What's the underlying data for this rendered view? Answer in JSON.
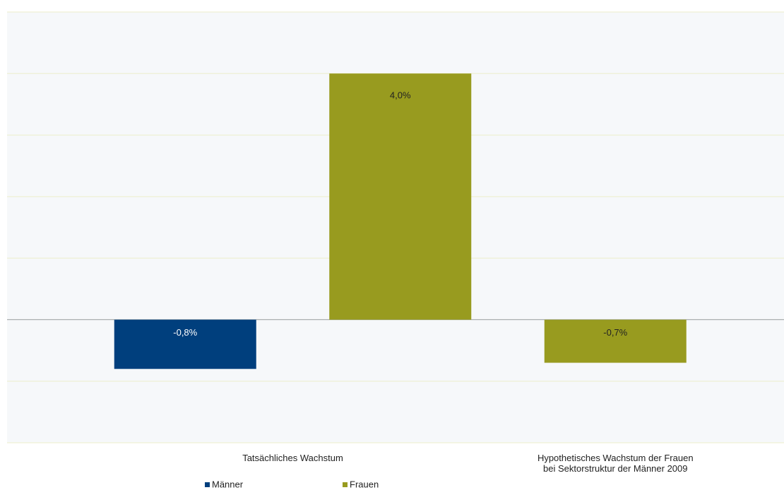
{
  "chart_data": {
    "type": "bar",
    "categories": [
      "Tatsächliches Wachstum",
      "Hypothetisches Wachstum der Frauen bei Sektorstruktur der Männer 2009"
    ],
    "series": [
      {
        "name": "Männer",
        "color": "#003f7d",
        "values": [
          -0.8,
          null
        ],
        "value_labels": [
          "-0,8%",
          null
        ]
      },
      {
        "name": "Frauen",
        "color": "#989b1f",
        "values": [
          4.0,
          -0.7
        ],
        "value_labels": [
          "4,0%",
          "-0,7%"
        ]
      }
    ],
    "ylim": [
      -2,
      5
    ],
    "yticks": [
      -2,
      -1,
      0,
      1,
      2,
      3,
      4,
      5
    ],
    "grid": true
  }
}
